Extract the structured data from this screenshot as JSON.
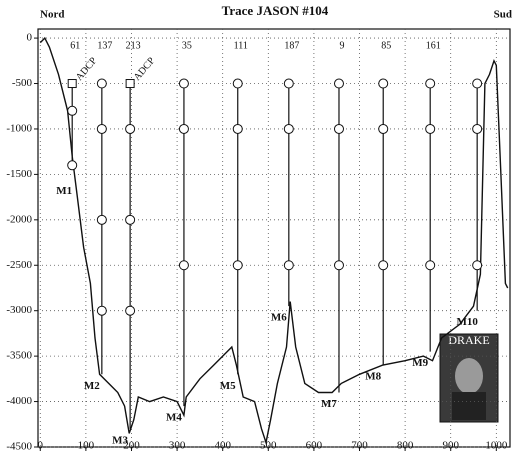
{
  "chart_data": {
    "type": "line",
    "title": "Trace JASON #104",
    "left_label": "Nord",
    "right_label": "Sud",
    "xlim": [
      -5,
      1030
    ],
    "ylim": [
      -4500,
      100
    ],
    "xticks": [
      0,
      100,
      200,
      300,
      400,
      500,
      600,
      700,
      800,
      900,
      1000
    ],
    "yticks": [
      0,
      -500,
      -1000,
      -1500,
      -2000,
      -2500,
      -3000,
      -3500,
      -4000,
      -4500
    ],
    "grid": true,
    "color": "#111111",
    "x": [
      0,
      10,
      20,
      40,
      60,
      70,
      80,
      95,
      110,
      120,
      130,
      150,
      170,
      185,
      195,
      205,
      215,
      240,
      270,
      300,
      315,
      320,
      350,
      380,
      400,
      420,
      430,
      445,
      470,
      485,
      495,
      505,
      520,
      540,
      548,
      560,
      580,
      610,
      640,
      660,
      700,
      750,
      800,
      840,
      860,
      880,
      920,
      950,
      965,
      975,
      985,
      995,
      1000,
      1010,
      1020,
      1025
    ],
    "values": [
      -50,
      0,
      -100,
      -400,
      -800,
      -1300,
      -1700,
      -2300,
      -2700,
      -3300,
      -3700,
      -3800,
      -3900,
      -4050,
      -4350,
      -4200,
      -3950,
      -4000,
      -3950,
      -4000,
      -4150,
      -3950,
      -3750,
      -3600,
      -3500,
      -3400,
      -3600,
      -3950,
      -4000,
      -4300,
      -4450,
      -4200,
      -3800,
      -3400,
      -2900,
      -3400,
      -3800,
      -3900,
      -3900,
      -3800,
      -3700,
      -3600,
      -3550,
      -3500,
      -3550,
      -3300,
      -3150,
      -2950,
      -2600,
      -500,
      -400,
      -250,
      -300,
      -1500,
      -2700,
      -2750
    ],
    "moorings": [
      {
        "name": "M1",
        "x": 70,
        "bottom": -1400,
        "instruments": [
          -500,
          -800,
          -1400
        ],
        "top_label": "ADCP",
        "number": 61
      },
      {
        "name": "M2",
        "x": 135,
        "bottom": -3700,
        "instruments": [
          -500,
          -1000,
          -2000,
          -3000
        ],
        "number": 137
      },
      {
        "name": "M3",
        "x": 197,
        "bottom": -4300,
        "instruments": [
          -500,
          -1000,
          -2000,
          -3000
        ],
        "top_label": "ADCP",
        "number": 213
      },
      {
        "name": "M4",
        "x": 315,
        "bottom": -4050,
        "instruments": [
          -500,
          -1000,
          -2500
        ],
        "number": 35
      },
      {
        "name": "M5",
        "x": 433,
        "bottom": -3700,
        "instruments": [
          -500,
          -1000,
          -2500
        ],
        "number": 111
      },
      {
        "name": "M6",
        "x": 545,
        "bottom": -2950,
        "instruments": [
          -500,
          -1000,
          -2500
        ],
        "number": 187
      },
      {
        "name": "M7",
        "x": 655,
        "bottom": -3900,
        "instruments": [
          -500,
          -1000,
          -2500
        ],
        "number": 9
      },
      {
        "name": "M8",
        "x": 752,
        "bottom": -3600,
        "instruments": [
          -500,
          -1000,
          -2500
        ],
        "number": 85
      },
      {
        "name": "M9",
        "x": 855,
        "bottom": -3450,
        "instruments": [
          -500,
          -1000,
          -2500
        ],
        "number": 161
      },
      {
        "name": "M10",
        "x": 958,
        "bottom": -3000,
        "instruments": [
          -500,
          -1000,
          -2500
        ]
      }
    ],
    "image_label": "DRAKE"
  }
}
